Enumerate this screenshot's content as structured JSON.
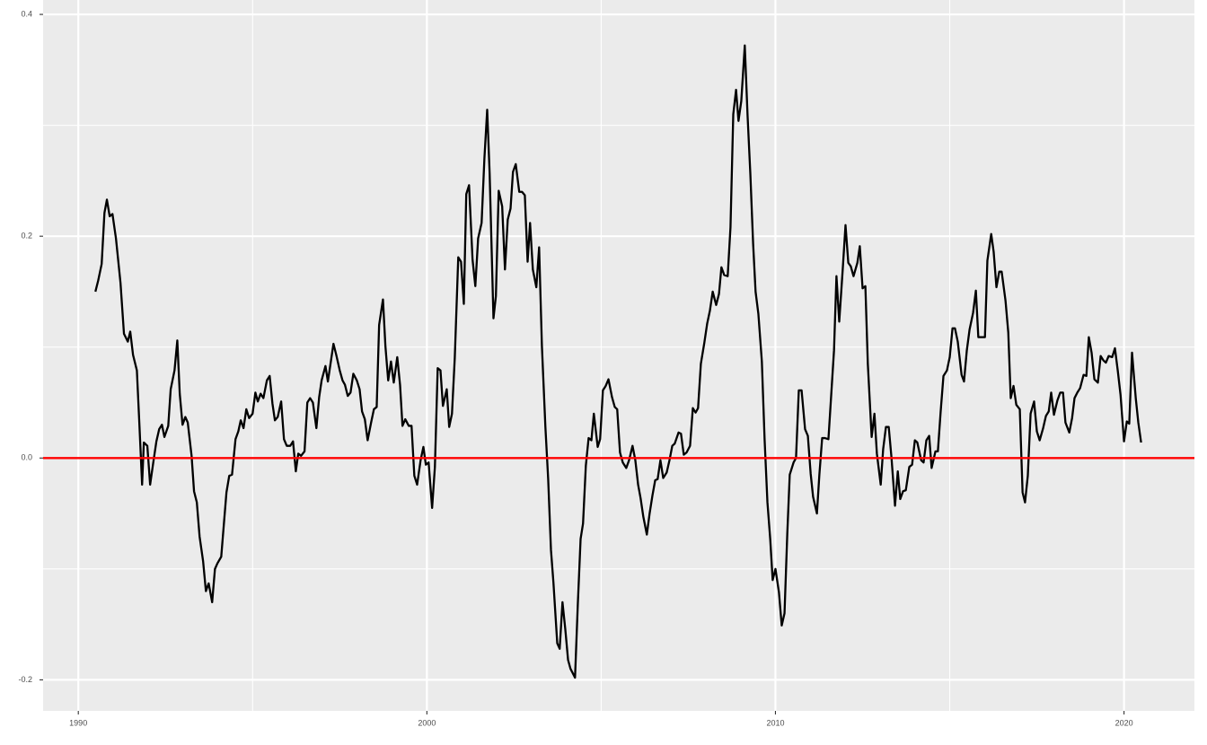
{
  "chart_data": {
    "type": "line",
    "x": [
      1990.49,
      1990.57,
      1990.67,
      1990.75,
      1990.82,
      1990.9,
      1990.98,
      1991.08,
      1991.21,
      1991.31,
      1991.42,
      1991.49,
      1991.57,
      1991.68,
      1991.75,
      1991.83,
      1991.88,
      1991.98,
      1992.06,
      1992.16,
      1992.24,
      1992.32,
      1992.4,
      1992.47,
      1992.58,
      1992.65,
      1992.76,
      1992.84,
      1992.91,
      1992.99,
      1993.07,
      1993.14,
      1993.25,
      1993.32,
      1993.4,
      1993.48,
      1993.58,
      1993.66,
      1993.74,
      1993.84,
      1993.92,
      1993.99,
      1994.1,
      1994.18,
      1994.25,
      1994.33,
      1994.41,
      1994.51,
      1994.59,
      1994.66,
      1994.74,
      1994.82,
      1994.9,
      1995.0,
      1995.08,
      1995.15,
      1995.23,
      1995.31,
      1995.41,
      1995.49,
      1995.57,
      1995.64,
      1995.72,
      1995.82,
      1995.9,
      1995.98,
      1996.08,
      1996.16,
      1996.24,
      1996.31,
      1996.39,
      1996.49,
      1996.57,
      1996.65,
      1996.73,
      1996.83,
      1996.91,
      1996.98,
      1997.09,
      1997.16,
      1997.24,
      1997.32,
      1997.4,
      1997.5,
      1997.58,
      1997.65,
      1997.73,
      1997.81,
      1997.89,
      1997.99,
      1998.07,
      1998.14,
      1998.22,
      1998.3,
      1998.4,
      1998.48,
      1998.56,
      1998.63,
      1998.74,
      1998.81,
      1998.89,
      1998.97,
      1999.05,
      1999.15,
      1999.23,
      1999.3,
      1999.38,
      1999.48,
      1999.56,
      1999.64,
      1999.72,
      1999.82,
      1999.9,
      1999.97,
      2000.05,
      2000.15,
      2000.23,
      2000.31,
      2000.39,
      2000.46,
      2000.57,
      2000.64,
      2000.72,
      2000.8,
      2000.9,
      2000.98,
      2001.06,
      2001.13,
      2001.21,
      2001.31,
      2001.39,
      2001.47,
      2001.57,
      2001.65,
      2001.73,
      2001.8,
      2001.91,
      2001.98,
      2002.06,
      2002.16,
      2002.24,
      2002.32,
      2002.4,
      2002.47,
      2002.55,
      2002.65,
      2002.73,
      2002.81,
      2002.89,
      2002.96,
      2003.04,
      2003.14,
      2003.22,
      2003.3,
      2003.4,
      2003.48,
      2003.56,
      2003.63,
      2003.74,
      2003.81,
      2003.89,
      2003.97,
      2004.05,
      2004.12,
      2004.25,
      2004.33,
      2004.41,
      2004.48,
      2004.56,
      2004.64,
      2004.72,
      2004.79,
      2004.9,
      2004.97,
      2005.05,
      2005.13,
      2005.21,
      2005.31,
      2005.39,
      2005.46,
      2005.54,
      2005.62,
      2005.72,
      2005.8,
      2005.9,
      2005.98,
      2006.06,
      2006.13,
      2006.21,
      2006.31,
      2006.39,
      2006.47,
      2006.55,
      2006.62,
      2006.7,
      2006.78,
      2006.88,
      2006.96,
      2007.04,
      2007.11,
      2007.22,
      2007.29,
      2007.37,
      2007.45,
      2007.55,
      2007.63,
      2007.71,
      2007.78,
      2007.86,
      2007.96,
      2008.04,
      2008.12,
      2008.2,
      2008.3,
      2008.38,
      2008.45,
      2008.53,
      2008.63,
      2008.71,
      2008.79,
      2008.87,
      2008.94,
      2009.02,
      2009.12,
      2009.2,
      2009.28,
      2009.36,
      2009.43,
      2009.51,
      2009.61,
      2009.69,
      2009.77,
      2009.85,
      2009.92,
      2010.0,
      2010.1,
      2010.18,
      2010.26,
      2010.34,
      2010.41,
      2010.52,
      2010.59,
      2010.67,
      2010.75,
      2010.85,
      2010.93,
      2011.01,
      2011.08,
      2011.19,
      2011.26,
      2011.34,
      2011.42,
      2011.52,
      2011.6,
      2011.68,
      2011.75,
      2011.83,
      2011.93,
      2012.01,
      2012.09,
      2012.16,
      2012.24,
      2012.35,
      2012.42,
      2012.5,
      2012.58,
      2012.65,
      2012.76,
      2012.84,
      2012.91,
      2013.02,
      2013.09,
      2013.17,
      2013.25,
      2013.33,
      2013.43,
      2013.51,
      2013.58,
      2013.66,
      2013.74,
      2013.84,
      2013.92,
      2014.0,
      2014.07,
      2014.18,
      2014.25,
      2014.33,
      2014.41,
      2014.48,
      2014.59,
      2014.66,
      2014.74,
      2014.82,
      2014.92,
      2015.0,
      2015.08,
      2015.15,
      2015.23,
      2015.34,
      2015.41,
      2015.49,
      2015.57,
      2015.67,
      2015.75,
      2015.82,
      2015.9,
      2016.01,
      2016.08,
      2016.19,
      2016.26,
      2016.34,
      2016.42,
      2016.49,
      2016.6,
      2016.68,
      2016.75,
      2016.83,
      2016.91,
      2017.01,
      2017.09,
      2017.16,
      2017.24,
      2017.32,
      2017.42,
      2017.5,
      2017.58,
      2017.68,
      2017.76,
      2017.84,
      2017.91,
      2017.99,
      2018.09,
      2018.17,
      2018.25,
      2018.32,
      2018.43,
      2018.51,
      2018.58,
      2018.66,
      2018.74,
      2018.84,
      2018.92,
      2018.99,
      2019.07,
      2019.15,
      2019.25,
      2019.33,
      2019.41,
      2019.48,
      2019.56,
      2019.66,
      2019.74,
      2019.82,
      2019.9,
      2020.0,
      2020.08,
      2020.15,
      2020.23,
      2020.34,
      2020.41,
      2020.49
    ],
    "series": [
      {
        "color": "#000000",
        "values": [
          0.15,
          0.16,
          0.175,
          0.221,
          0.233,
          0.218,
          0.22,
          0.198,
          0.158,
          0.112,
          0.105,
          0.114,
          0.093,
          0.079,
          0.032,
          -0.024,
          0.014,
          0.011,
          -0.024,
          -0.002,
          0.015,
          0.026,
          0.03,
          0.019,
          0.029,
          0.062,
          0.079,
          0.106,
          0.058,
          0.03,
          0.037,
          0.032,
          0.002,
          -0.03,
          -0.04,
          -0.071,
          -0.093,
          -0.12,
          -0.113,
          -0.13,
          -0.1,
          -0.095,
          -0.089,
          -0.058,
          -0.031,
          -0.016,
          -0.015,
          0.017,
          0.024,
          0.034,
          0.027,
          0.044,
          0.036,
          0.04,
          0.059,
          0.051,
          0.058,
          0.054,
          0.07,
          0.074,
          0.049,
          0.034,
          0.037,
          0.051,
          0.017,
          0.011,
          0.011,
          0.015,
          -0.012,
          0.004,
          0.002,
          0.006,
          0.05,
          0.054,
          0.05,
          0.027,
          0.055,
          0.07,
          0.083,
          0.069,
          0.086,
          0.103,
          0.093,
          0.079,
          0.07,
          0.066,
          0.056,
          0.059,
          0.076,
          0.07,
          0.062,
          0.042,
          0.035,
          0.016,
          0.032,
          0.044,
          0.046,
          0.12,
          0.143,
          0.101,
          0.07,
          0.087,
          0.068,
          0.091,
          0.066,
          0.029,
          0.035,
          0.029,
          0.029,
          -0.016,
          -0.024,
          -0.002,
          0.01,
          -0.006,
          -0.004,
          -0.045,
          -0.008,
          0.081,
          0.079,
          0.047,
          0.062,
          0.028,
          0.04,
          0.09,
          0.181,
          0.177,
          0.139,
          0.238,
          0.246,
          0.179,
          0.155,
          0.198,
          0.212,
          0.27,
          0.314,
          0.257,
          0.126,
          0.146,
          0.241,
          0.227,
          0.17,
          0.215,
          0.225,
          0.258,
          0.265,
          0.24,
          0.24,
          0.237,
          0.177,
          0.212,
          0.17,
          0.154,
          0.19,
          0.101,
          0.028,
          -0.019,
          -0.083,
          -0.112,
          -0.167,
          -0.172,
          -0.13,
          -0.154,
          -0.182,
          -0.19,
          -0.198,
          -0.132,
          -0.073,
          -0.059,
          -0.007,
          0.018,
          0.016,
          0.04,
          0.01,
          0.017,
          0.061,
          0.065,
          0.071,
          0.055,
          0.046,
          0.044,
          0.005,
          -0.004,
          -0.009,
          -0.002,
          0.011,
          -0.002,
          -0.024,
          -0.036,
          -0.053,
          -0.069,
          -0.05,
          -0.034,
          -0.02,
          -0.019,
          -0.002,
          -0.018,
          -0.013,
          -0.002,
          0.011,
          0.013,
          0.023,
          0.022,
          0.003,
          0.005,
          0.011,
          0.045,
          0.041,
          0.045,
          0.085,
          0.104,
          0.121,
          0.133,
          0.15,
          0.138,
          0.148,
          0.172,
          0.165,
          0.164,
          0.208,
          0.31,
          0.332,
          0.304,
          0.322,
          0.372,
          0.309,
          0.256,
          0.193,
          0.15,
          0.13,
          0.087,
          0.016,
          -0.04,
          -0.073,
          -0.11,
          -0.1,
          -0.121,
          -0.151,
          -0.14,
          -0.068,
          -0.015,
          -0.004,
          0.0,
          0.061,
          0.061,
          0.026,
          0.02,
          -0.014,
          -0.035,
          -0.05,
          -0.015,
          0.018,
          0.018,
          0.017,
          0.057,
          0.097,
          0.164,
          0.123,
          0.17,
          0.21,
          0.176,
          0.173,
          0.164,
          0.176,
          0.191,
          0.153,
          0.155,
          0.085,
          0.019,
          0.04,
          0.004,
          -0.024,
          0.008,
          0.028,
          0.028,
          0.0,
          -0.043,
          -0.012,
          -0.037,
          -0.03,
          -0.029,
          -0.008,
          -0.006,
          0.016,
          0.014,
          -0.002,
          -0.004,
          0.016,
          0.02,
          -0.009,
          0.006,
          0.006,
          0.042,
          0.074,
          0.079,
          0.091,
          0.117,
          0.117,
          0.105,
          0.075,
          0.069,
          0.097,
          0.116,
          0.131,
          0.151,
          0.109,
          0.109,
          0.109,
          0.178,
          0.202,
          0.186,
          0.154,
          0.168,
          0.168,
          0.142,
          0.113,
          0.054,
          0.065,
          0.048,
          0.044,
          -0.031,
          -0.04,
          -0.016,
          0.04,
          0.051,
          0.024,
          0.016,
          0.027,
          0.038,
          0.042,
          0.059,
          0.039,
          0.052,
          0.059,
          0.059,
          0.032,
          0.023,
          0.036,
          0.054,
          0.059,
          0.063,
          0.075,
          0.074,
          0.109,
          0.095,
          0.071,
          0.068,
          0.092,
          0.088,
          0.086,
          0.092,
          0.091,
          0.099,
          0.079,
          0.057,
          0.015,
          0.033,
          0.031,
          0.095,
          0.053,
          0.032,
          0.014
        ]
      }
    ],
    "hline": {
      "value": 0,
      "color": "#ff0000"
    },
    "xlim": [
      1988.99,
      2022.02
    ],
    "ylim": [
      -0.228,
      0.413
    ],
    "xticks": [
      1990,
      2000,
      2010,
      2020
    ],
    "yticks": [
      -0.2,
      {
        "value": 0,
        "label": "0.0"
      },
      0.2,
      0.4
    ],
    "xminor": [
      1995,
      2005,
      2015
    ],
    "yminor": [
      -0.1,
      0.1,
      0.3
    ],
    "grid": true
  }
}
